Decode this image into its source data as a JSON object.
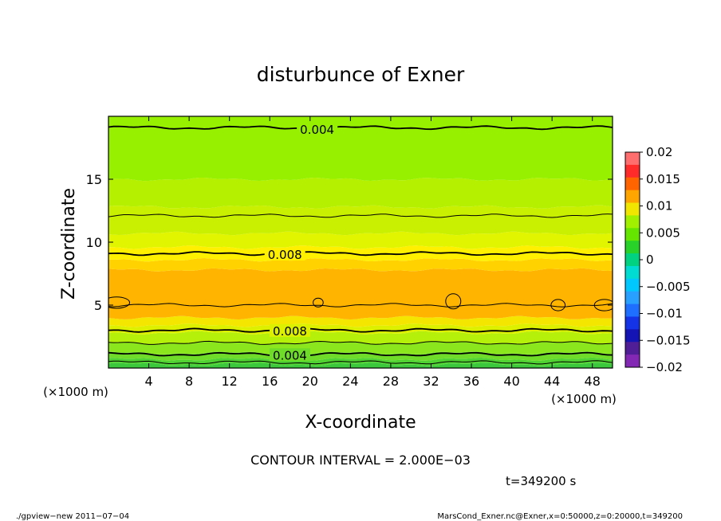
{
  "chart_data": {
    "type": "contour",
    "title": "disturbunce of Exner",
    "xlabel": "X-coordinate",
    "ylabel": "Z-coordinate",
    "x_unit": "(×1000 m)",
    "y_unit": "(×1000 m)",
    "xlim": [
      0,
      50
    ],
    "ylim": [
      0,
      20
    ],
    "x_ticks": [
      4,
      8,
      12,
      16,
      20,
      24,
      28,
      32,
      36,
      40,
      44,
      48
    ],
    "y_ticks": [
      5,
      10,
      15
    ],
    "color_bands": [
      {
        "z_from": 0.0,
        "z_to": 0.3,
        "color": "#3cc83c"
      },
      {
        "z_from": 0.3,
        "z_to": 0.7,
        "color": "#50d232"
      },
      {
        "z_from": 0.7,
        "z_to": 1.2,
        "color": "#6edc28"
      },
      {
        "z_from": 1.2,
        "z_to": 2.0,
        "color": "#8ce61e"
      },
      {
        "z_from": 2.0,
        "z_to": 2.8,
        "color": "#b4f00a"
      },
      {
        "z_from": 2.8,
        "z_to": 3.4,
        "color": "#dcf000"
      },
      {
        "z_from": 3.4,
        "z_to": 4.0,
        "color": "#f5e600"
      },
      {
        "z_from": 4.0,
        "z_to": 7.8,
        "color": "#ffb400"
      },
      {
        "z_from": 7.8,
        "z_to": 8.6,
        "color": "#ffd200"
      },
      {
        "z_from": 8.6,
        "z_to": 9.6,
        "color": "#fff000"
      },
      {
        "z_from": 9.6,
        "z_to": 10.7,
        "color": "#e1f500"
      },
      {
        "z_from": 10.7,
        "z_to": 12.8,
        "color": "#c8f000"
      },
      {
        "z_from": 12.8,
        "z_to": 15.0,
        "color": "#b4f000"
      },
      {
        "z_from": 15.0,
        "z_to": 20.0,
        "color": "#96f000"
      }
    ],
    "contours": [
      {
        "level": 0.004,
        "z": 19.1,
        "bold": true,
        "label": "0.004",
        "label_x": 20.7
      },
      {
        "level": 0.006,
        "z": 12.1,
        "bold": false,
        "label": "",
        "label_x": null
      },
      {
        "level": 0.008,
        "z": 9.1,
        "bold": true,
        "label": "0.008",
        "label_x": 17.5
      },
      {
        "level": 0.01,
        "z": 5.0,
        "bold": false,
        "label": "",
        "label_x": null
      },
      {
        "level": 0.008,
        "z": 3.0,
        "bold": true,
        "label": "0.008",
        "label_x": 18.0
      },
      {
        "level": 0.006,
        "z": 2.0,
        "bold": false,
        "label": "",
        "label_x": null
      },
      {
        "level": 0.004,
        "z": 1.1,
        "bold": true,
        "label": "0.004",
        "label_x": 18.0
      },
      {
        "level": 0.002,
        "z": 0.45,
        "bold": false,
        "label": "",
        "label_x": null
      }
    ],
    "colorbar": {
      "ticks": [
        "0.02",
        "0.015",
        "0.01",
        "0.005",
        "0",
        "−0.005",
        "−0.01",
        "−0.015",
        "−0.02"
      ],
      "colors": [
        "#ff6e6e",
        "#ff2a2a",
        "#ff6400",
        "#ffa500",
        "#f0e600",
        "#a0f000",
        "#64e600",
        "#28d228",
        "#00d282",
        "#00dcd2",
        "#00c8ff",
        "#28a0ff",
        "#1e6eff",
        "#1432e6",
        "#1414b4",
        "#501e96",
        "#8228b4"
      ]
    },
    "contour_interval": "CONTOUR INTERVAL = 2.000E−03",
    "time": "t=349200 s"
  },
  "footer": {
    "left": "./gpview−new   2011−07−04",
    "right": "MarsCond_Exner.nc@Exner,x=0:50000,z=0:20000,t=349200"
  }
}
